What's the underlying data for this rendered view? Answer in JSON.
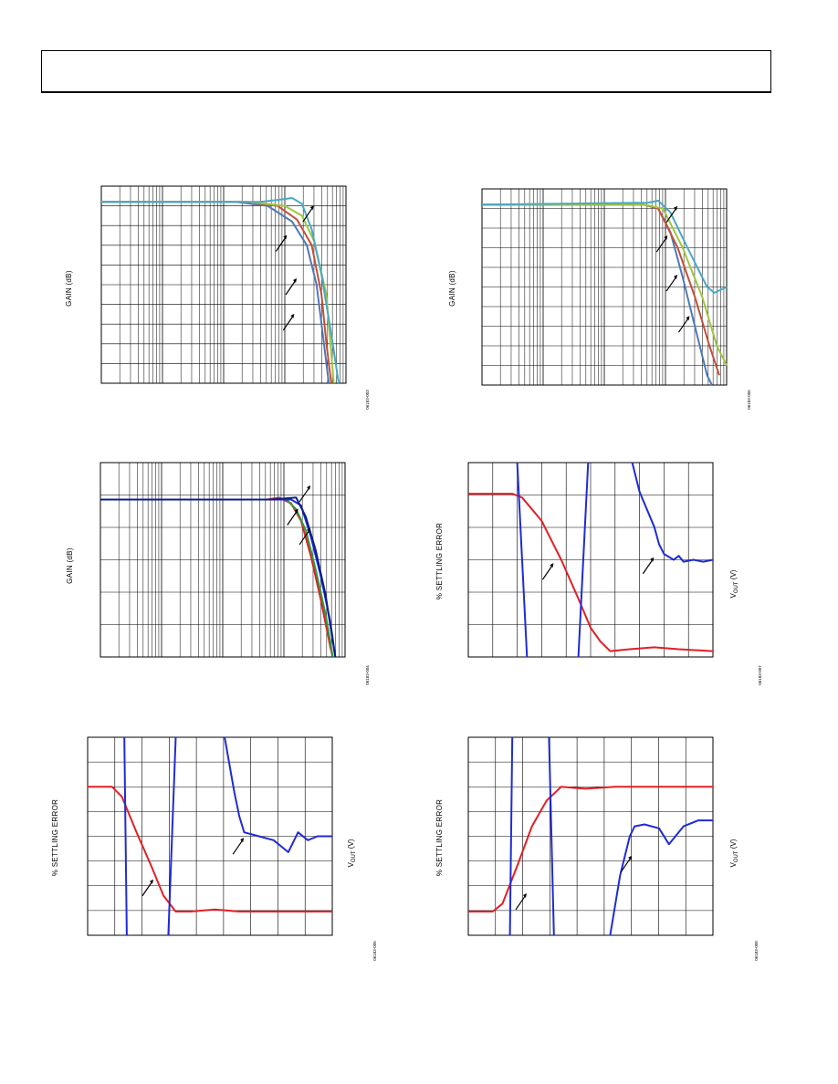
{
  "header": {
    "title": ""
  },
  "colors": {
    "grid": "#000000",
    "red": "#e21f26",
    "blue": "#1f2bd6",
    "green": "#2f9a3a",
    "navy": "#0b1f8a",
    "teal": "#4aa7c6",
    "lightgreen": "#9fc63c",
    "rust": "#c2503a",
    "steel": "#4f78b8"
  },
  "charts": [
    {
      "id": "top-left",
      "type": "line",
      "ylabel": "GAIN (dB)",
      "figure_id": "06183-003",
      "xscale": "log",
      "grid": true,
      "series": [
        {
          "color": "#4f78b8",
          "values": [
            [
              0,
              8
            ],
            [
              0.55,
              8
            ],
            [
              0.68,
              10
            ],
            [
              0.78,
              18
            ],
            [
              0.84,
              30
            ],
            [
              0.88,
              50
            ],
            [
              0.91,
              80
            ],
            [
              0.93,
              100
            ]
          ]
        },
        {
          "color": "#c2503a",
          "values": [
            [
              0,
              8
            ],
            [
              0.58,
              8
            ],
            [
              0.72,
              10
            ],
            [
              0.8,
              17
            ],
            [
              0.86,
              30
            ],
            [
              0.9,
              55
            ],
            [
              0.92,
              80
            ],
            [
              0.94,
              100
            ]
          ]
        },
        {
          "color": "#9fc63c",
          "values": [
            [
              0,
              8
            ],
            [
              0.6,
              8
            ],
            [
              0.75,
              10
            ],
            [
              0.82,
              15
            ],
            [
              0.87,
              28
            ],
            [
              0.92,
              55
            ],
            [
              0.95,
              100
            ]
          ]
        },
        {
          "color": "#4aa7c6",
          "values": [
            [
              0,
              8
            ],
            [
              0.65,
              8
            ],
            [
              0.72,
              7
            ],
            [
              0.78,
              6
            ],
            [
              0.82,
              9
            ],
            [
              0.86,
              22
            ],
            [
              0.9,
              45
            ],
            [
              0.94,
              75
            ],
            [
              0.97,
              100
            ]
          ]
        }
      ],
      "arrows": [
        [
          0.85,
          0.13
        ],
        [
          0.74,
          0.28
        ],
        [
          0.78,
          0.5
        ],
        [
          0.77,
          0.68
        ]
      ]
    },
    {
      "id": "top-right",
      "type": "line",
      "ylabel": "GAIN (dB)",
      "figure_id": "06183-006",
      "xscale": "log",
      "grid": true,
      "series": [
        {
          "color": "#4f78b8",
          "values": [
            [
              0,
              8
            ],
            [
              0.66,
              8
            ],
            [
              0.72,
              10
            ],
            [
              0.77,
              22
            ],
            [
              0.82,
              45
            ],
            [
              0.87,
              70
            ],
            [
              0.92,
              95
            ],
            [
              0.94,
              100
            ]
          ]
        },
        {
          "color": "#c2503a",
          "values": [
            [
              0,
              8
            ],
            [
              0.66,
              8
            ],
            [
              0.72,
              10
            ],
            [
              0.8,
              30
            ],
            [
              0.87,
              55
            ],
            [
              0.93,
              80
            ],
            [
              0.97,
              95
            ]
          ]
        },
        {
          "color": "#9fc63c",
          "values": [
            [
              0,
              8
            ],
            [
              0.66,
              8
            ],
            [
              0.74,
              10
            ],
            [
              0.82,
              30
            ],
            [
              0.9,
              55
            ],
            [
              0.96,
              80
            ],
            [
              1.0,
              90
            ]
          ]
        },
        {
          "color": "#4aa7c6",
          "values": [
            [
              0,
              8
            ],
            [
              0.68,
              7
            ],
            [
              0.72,
              6
            ],
            [
              0.77,
              12
            ],
            [
              0.84,
              30
            ],
            [
              0.92,
              50
            ],
            [
              0.95,
              53
            ],
            [
              1.0,
              50
            ]
          ]
        }
      ],
      "arrows": [
        [
          0.78,
          0.12
        ],
        [
          0.74,
          0.27
        ],
        [
          0.78,
          0.47
        ],
        [
          0.83,
          0.68
        ]
      ]
    },
    {
      "id": "middle-left",
      "type": "line",
      "ylabel": "GAIN (dB)",
      "figure_id": "06183-004",
      "xscale": "log",
      "grid": true,
      "series": [
        {
          "color": "#e21f26",
          "values": [
            [
              0,
              19
            ],
            [
              0.68,
              19
            ],
            [
              0.73,
              18
            ],
            [
              0.78,
              21
            ],
            [
              0.82,
              30
            ],
            [
              0.86,
              48
            ],
            [
              0.9,
              70
            ],
            [
              0.94,
              95
            ],
            [
              0.95,
              100
            ]
          ]
        },
        {
          "color": "#2f9a3a",
          "values": [
            [
              0,
              19
            ],
            [
              0.7,
              19
            ],
            [
              0.76,
              19
            ],
            [
              0.8,
              24
            ],
            [
              0.84,
              35
            ],
            [
              0.88,
              55
            ],
            [
              0.92,
              78
            ],
            [
              0.95,
              100
            ]
          ]
        },
        {
          "color": "#1f2bd6",
          "values": [
            [
              0,
              19
            ],
            [
              0.72,
              19
            ],
            [
              0.78,
              19
            ],
            [
              0.82,
              22
            ],
            [
              0.86,
              38
            ],
            [
              0.9,
              58
            ],
            [
              0.94,
              82
            ],
            [
              0.96,
              100
            ]
          ]
        },
        {
          "color": "#0b1f8a",
          "values": [
            [
              0,
              19
            ],
            [
              0.7,
              19
            ],
            [
              0.8,
              18
            ],
            [
              0.84,
              28
            ],
            [
              0.88,
              45
            ],
            [
              0.92,
              68
            ],
            [
              0.95,
              92
            ],
            [
              0.96,
              100
            ]
          ]
        }
      ],
      "arrows": [
        [
          0.84,
          0.15
        ],
        [
          0.79,
          0.27
        ],
        [
          0.84,
          0.37
        ]
      ]
    },
    {
      "id": "middle-right",
      "type": "line",
      "ylabel": "% SETTLING ERROR",
      "xlabel": "V",
      "xlabel_sub": "OUT",
      "xlabel_unit": " (V)",
      "figure_id": "06183-007",
      "grid": true,
      "series": [
        {
          "color": "#e21f26",
          "values": [
            [
              0,
              16
            ],
            [
              0.18,
              16
            ],
            [
              0.22,
              18
            ],
            [
              0.3,
              30
            ],
            [
              0.38,
              50
            ],
            [
              0.45,
              70
            ],
            [
              0.5,
              85
            ],
            [
              0.54,
              92
            ],
            [
              0.58,
              97
            ],
            [
              0.66,
              96
            ],
            [
              0.76,
              95
            ],
            [
              0.86,
              96
            ],
            [
              1.0,
              97
            ]
          ]
        },
        {
          "color": "#1f2bd6",
          "values": [
            [
              0.2,
              0
            ],
            [
              0.24,
              100
            ],
            null,
            [
              0.45,
              100
            ],
            [
              0.49,
              0
            ],
            null,
            [
              0.67,
              0
            ],
            [
              0.7,
              15
            ],
            [
              0.76,
              33
            ],
            [
              0.78,
              42
            ],
            [
              0.8,
              47
            ],
            [
              0.84,
              50
            ],
            [
              0.86,
              48
            ],
            [
              0.88,
              51
            ],
            [
              0.92,
              50
            ],
            [
              0.96,
              51
            ],
            [
              1.0,
              50
            ]
          ]
        }
      ],
      "arrows": [
        [
          0.33,
          0.55
        ],
        [
          0.74,
          0.52
        ]
      ]
    },
    {
      "id": "bottom-left",
      "type": "line",
      "ylabel": "% SETTLING ERROR",
      "xlabel": "V",
      "xlabel_sub": "OUT",
      "xlabel_unit": " (V)",
      "figure_id": "06183-005",
      "grid": true,
      "series": [
        {
          "color": "#e21f26",
          "values": [
            [
              0,
              25
            ],
            [
              0.1,
              25
            ],
            [
              0.14,
              30
            ],
            [
              0.2,
              48
            ],
            [
              0.26,
              65
            ],
            [
              0.31,
              80
            ],
            [
              0.36,
              88
            ],
            [
              0.42,
              88
            ],
            [
              0.52,
              87
            ],
            [
              0.62,
              88
            ],
            [
              0.8,
              88
            ],
            [
              1.0,
              88
            ]
          ]
        },
        {
          "color": "#1f2bd6",
          "values": [
            [
              0.15,
              0
            ],
            [
              0.16,
              100
            ],
            null,
            [
              0.33,
              100
            ],
            [
              0.36,
              0
            ],
            null,
            [
              0.56,
              0
            ],
            [
              0.6,
              28
            ],
            [
              0.62,
              40
            ],
            [
              0.64,
              48
            ],
            [
              0.7,
              50
            ],
            [
              0.76,
              52
            ],
            [
              0.82,
              58
            ],
            [
              0.86,
              48
            ],
            [
              0.9,
              52
            ],
            [
              0.94,
              50
            ],
            [
              1.0,
              50
            ]
          ]
        }
      ],
      "arrows": [
        [
          0.25,
          0.75
        ],
        [
          0.62,
          0.54
        ]
      ]
    },
    {
      "id": "bottom-right",
      "type": "line",
      "ylabel": "% SETTLING ERROR",
      "xlabel": "V",
      "xlabel_sub": "OUT",
      "xlabel_unit": " (V)",
      "figure_id": "06183-008",
      "grid": true,
      "series": [
        {
          "color": "#e21f26",
          "values": [
            [
              0,
              88
            ],
            [
              0.1,
              88
            ],
            [
              0.14,
              84
            ],
            [
              0.2,
              65
            ],
            [
              0.26,
              45
            ],
            [
              0.32,
              32
            ],
            [
              0.38,
              25
            ],
            [
              0.48,
              26
            ],
            [
              0.6,
              25
            ],
            [
              0.8,
              25
            ],
            [
              1.0,
              25
            ]
          ]
        },
        {
          "color": "#1f2bd6",
          "values": [
            [
              0.17,
              100
            ],
            [
              0.18,
              0
            ],
            null,
            [
              0.33,
              0
            ],
            [
              0.35,
              100
            ],
            null,
            [
              0.58,
              100
            ],
            [
              0.62,
              70
            ],
            [
              0.66,
              50
            ],
            [
              0.68,
              45
            ],
            [
              0.72,
              44
            ],
            [
              0.78,
              46
            ],
            [
              0.82,
              54
            ],
            [
              0.88,
              45
            ],
            [
              0.94,
              42
            ],
            [
              1.0,
              42
            ]
          ]
        }
      ],
      "arrows": [
        [
          0.22,
          0.82
        ],
        [
          0.65,
          0.63
        ]
      ]
    }
  ]
}
